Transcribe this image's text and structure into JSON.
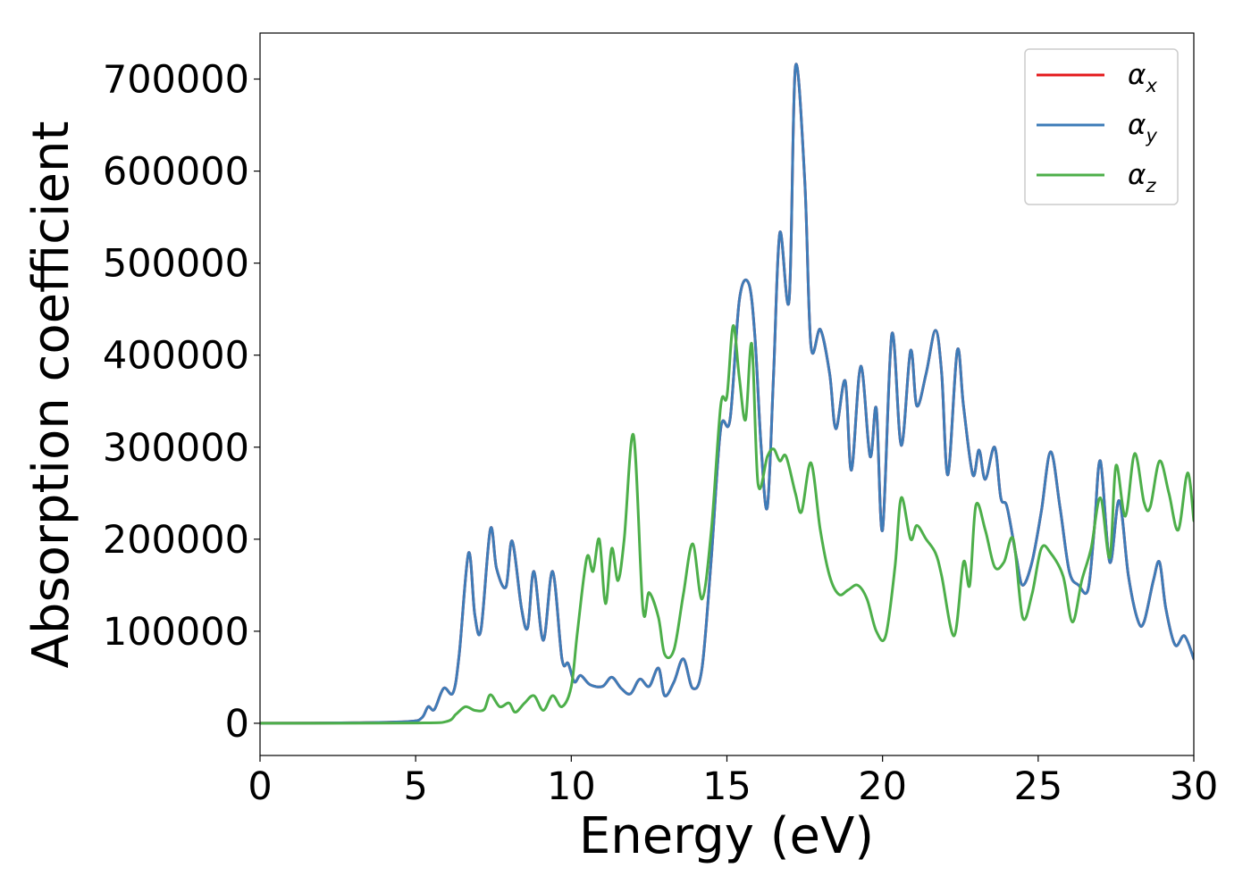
{
  "chart_data": {
    "type": "line",
    "title": "",
    "xlabel": "Energy (eV)",
    "ylabel": "Absorption coefficient",
    "xlim": [
      0,
      30
    ],
    "ylim": [
      -35000,
      750000
    ],
    "xticks": [
      0,
      5,
      10,
      15,
      20,
      25,
      30
    ],
    "xtick_labels": [
      "0",
      "5",
      "10",
      "15",
      "20",
      "25",
      "30"
    ],
    "yticks": [
      0,
      100000,
      200000,
      300000,
      400000,
      500000,
      600000,
      700000
    ],
    "ytick_labels": [
      "0",
      "100000",
      "200000",
      "300000",
      "400000",
      "500000",
      "600000",
      "700000"
    ],
    "grid": false,
    "legend_position": "top-right",
    "series": [
      {
        "name": "αx",
        "name_base": "α",
        "name_sub": "x",
        "color": "#e41a1c",
        "x": [
          0,
          3,
          4.8,
          5.2,
          5.4,
          5.6,
          5.9,
          6.2,
          6.4,
          6.7,
          6.9,
          7.1,
          7.4,
          7.6,
          7.9,
          8.1,
          8.4,
          8.6,
          8.8,
          9.1,
          9.4,
          9.7,
          9.9,
          10.1,
          10.3,
          10.6,
          11.0,
          11.3,
          11.6,
          11.9,
          12.2,
          12.5,
          12.8,
          13.0,
          13.3,
          13.6,
          13.9,
          14.2,
          14.5,
          14.8,
          15.1,
          15.4,
          15.7,
          15.9,
          16.1,
          16.3,
          16.5,
          16.7,
          17.0,
          17.2,
          17.5,
          17.7,
          18.0,
          18.3,
          18.5,
          18.8,
          19.0,
          19.3,
          19.6,
          19.8,
          20.0,
          20.3,
          20.6,
          20.9,
          21.1,
          21.4,
          21.7,
          21.9,
          22.1,
          22.4,
          22.6,
          22.9,
          23.1,
          23.3,
          23.6,
          23.8,
          24.0,
          24.3,
          24.5,
          24.8,
          25.1,
          25.4,
          25.7,
          26.0,
          26.3,
          26.6,
          26.8,
          27.0,
          27.3,
          27.6,
          27.9,
          28.2,
          28.4,
          28.7,
          28.9,
          29.1,
          29.4,
          29.7,
          30.0
        ],
        "y": [
          0,
          500,
          2000,
          6000,
          18000,
          15000,
          38000,
          33000,
          75000,
          185000,
          118000,
          102000,
          211000,
          168000,
          148000,
          198000,
          125000,
          104000,
          165000,
          90000,
          165000,
          70000,
          65000,
          45000,
          52000,
          42000,
          40000,
          50000,
          38000,
          32000,
          48000,
          40000,
          60000,
          30000,
          45000,
          70000,
          38000,
          60000,
          180000,
          320000,
          330000,
          460000,
          478000,
          420000,
          300000,
          235000,
          380000,
          533000,
          460000,
          713000,
          590000,
          410000,
          428000,
          380000,
          320000,
          372000,
          275000,
          388000,
          290000,
          342000,
          210000,
          423000,
          302000,
          405000,
          345000,
          380000,
          427000,
          380000,
          270000,
          405000,
          345000,
          270000,
          297000,
          265000,
          300000,
          245000,
          235000,
          180000,
          150000,
          175000,
          230000,
          295000,
          235000,
          165000,
          150000,
          145000,
          210000,
          285000,
          175000,
          242000,
          160000,
          112000,
          110000,
          155000,
          175000,
          125000,
          85000,
          95000,
          70000
        ]
      },
      {
        "name": "αy",
        "name_base": "α",
        "name_sub": "y",
        "color": "#3e7cb8",
        "x": [
          0,
          3,
          4.8,
          5.2,
          5.4,
          5.6,
          5.9,
          6.2,
          6.4,
          6.7,
          6.9,
          7.1,
          7.4,
          7.6,
          7.9,
          8.1,
          8.4,
          8.6,
          8.8,
          9.1,
          9.4,
          9.7,
          9.9,
          10.1,
          10.3,
          10.6,
          11.0,
          11.3,
          11.6,
          11.9,
          12.2,
          12.5,
          12.8,
          13.0,
          13.3,
          13.6,
          13.9,
          14.2,
          14.5,
          14.8,
          15.1,
          15.4,
          15.7,
          15.9,
          16.1,
          16.3,
          16.5,
          16.7,
          17.0,
          17.2,
          17.5,
          17.7,
          18.0,
          18.3,
          18.5,
          18.8,
          19.0,
          19.3,
          19.6,
          19.8,
          20.0,
          20.3,
          20.6,
          20.9,
          21.1,
          21.4,
          21.7,
          21.9,
          22.1,
          22.4,
          22.6,
          22.9,
          23.1,
          23.3,
          23.6,
          23.8,
          24.0,
          24.3,
          24.5,
          24.8,
          25.1,
          25.4,
          25.7,
          26.0,
          26.3,
          26.6,
          26.8,
          27.0,
          27.3,
          27.6,
          27.9,
          28.2,
          28.4,
          28.7,
          28.9,
          29.1,
          29.4,
          29.7,
          30.0
        ],
        "y": [
          0,
          500,
          2000,
          6000,
          18000,
          15000,
          38000,
          33000,
          75000,
          185000,
          118000,
          102000,
          211000,
          168000,
          148000,
          198000,
          125000,
          104000,
          165000,
          90000,
          165000,
          70000,
          65000,
          45000,
          52000,
          42000,
          40000,
          50000,
          38000,
          32000,
          48000,
          40000,
          60000,
          30000,
          45000,
          70000,
          38000,
          60000,
          180000,
          320000,
          330000,
          460000,
          478000,
          420000,
          300000,
          235000,
          380000,
          533000,
          460000,
          713000,
          590000,
          410000,
          428000,
          380000,
          320000,
          372000,
          275000,
          388000,
          290000,
          342000,
          210000,
          423000,
          302000,
          405000,
          345000,
          380000,
          427000,
          380000,
          270000,
          405000,
          345000,
          270000,
          297000,
          265000,
          300000,
          245000,
          235000,
          180000,
          150000,
          175000,
          230000,
          295000,
          235000,
          165000,
          150000,
          145000,
          210000,
          285000,
          175000,
          242000,
          160000,
          112000,
          110000,
          155000,
          175000,
          125000,
          85000,
          95000,
          70000
        ]
      },
      {
        "name": "αz",
        "name_base": "α",
        "name_sub": "z",
        "color": "#4daf4a",
        "x": [
          0,
          5,
          6.0,
          6.3,
          6.6,
          6.9,
          7.2,
          7.4,
          7.7,
          8.0,
          8.2,
          8.5,
          8.8,
          9.1,
          9.4,
          9.7,
          10.0,
          10.2,
          10.5,
          10.7,
          10.9,
          11.1,
          11.3,
          11.5,
          11.7,
          12.0,
          12.3,
          12.5,
          12.8,
          13.0,
          13.3,
          13.6,
          13.9,
          14.2,
          14.5,
          14.8,
          15.0,
          15.2,
          15.4,
          15.6,
          15.8,
          16.0,
          16.3,
          16.5,
          16.7,
          16.9,
          17.2,
          17.4,
          17.7,
          18.0,
          18.3,
          18.6,
          18.9,
          19.2,
          19.5,
          19.8,
          20.1,
          20.4,
          20.6,
          20.9,
          21.1,
          21.4,
          21.7,
          21.9,
          22.3,
          22.6,
          22.8,
          23.0,
          23.3,
          23.6,
          23.9,
          24.2,
          24.5,
          24.8,
          25.1,
          25.4,
          25.8,
          26.1,
          26.4,
          26.7,
          27.0,
          27.3,
          27.5,
          27.8,
          28.1,
          28.4,
          28.6,
          28.9,
          29.2,
          29.5,
          29.8,
          30.0
        ],
        "y": [
          0,
          300,
          2000,
          10000,
          18000,
          14000,
          15000,
          31000,
          18000,
          22000,
          12000,
          22000,
          30000,
          14000,
          30000,
          18000,
          40000,
          100000,
          180000,
          165000,
          200000,
          130000,
          190000,
          155000,
          200000,
          313000,
          125000,
          142000,
          115000,
          75000,
          80000,
          140000,
          195000,
          135000,
          210000,
          345000,
          355000,
          432000,
          375000,
          330000,
          412000,
          260000,
          290000,
          298000,
          285000,
          290000,
          250000,
          230000,
          283000,
          210000,
          160000,
          140000,
          145000,
          150000,
          135000,
          100000,
          95000,
          170000,
          245000,
          200000,
          215000,
          200000,
          185000,
          160000,
          95000,
          175000,
          150000,
          237000,
          210000,
          170000,
          175000,
          200000,
          115000,
          140000,
          190000,
          185000,
          160000,
          110000,
          155000,
          190000,
          245000,
          180000,
          280000,
          225000,
          293000,
          240000,
          235000,
          285000,
          250000,
          210000,
          272000,
          220000
        ]
      }
    ]
  }
}
